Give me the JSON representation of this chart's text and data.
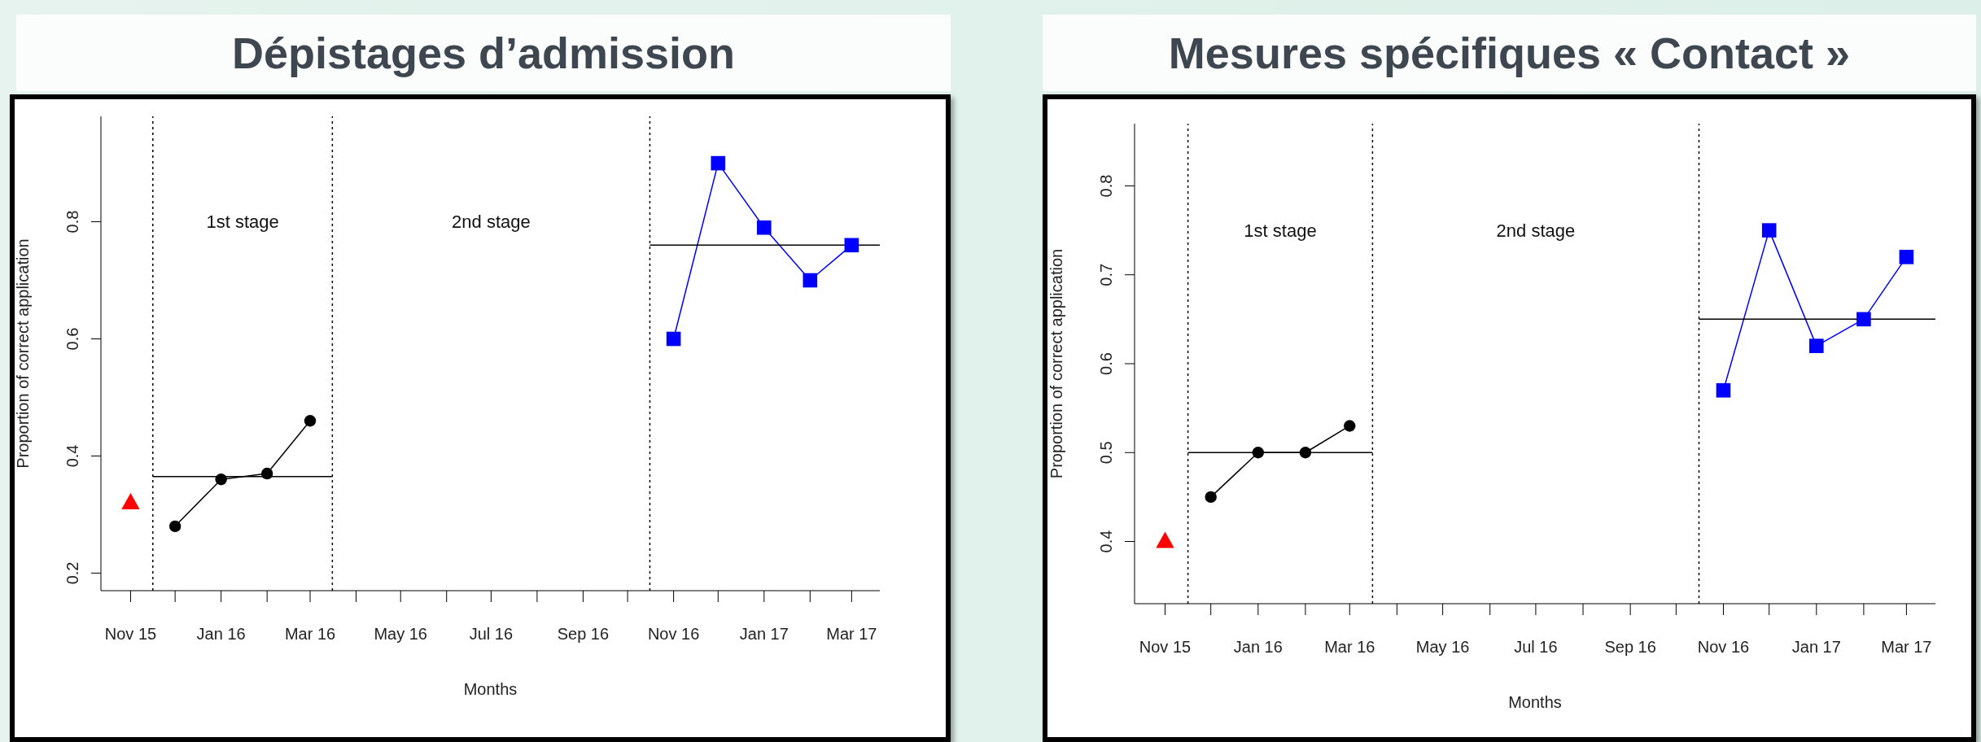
{
  "chart_data": [
    {
      "type": "line",
      "title": "Dépistages d’admission",
      "xlabel": "Months",
      "ylabel": "Proportion of correct application",
      "xlim": [
        "2015-10-12",
        "2017-03-20"
      ],
      "xticks": [
        {
          "value": "2015-11",
          "label": "Nov 15"
        },
        {
          "value": "2015-12",
          "label": null
        },
        {
          "value": "2016-01",
          "label": "Jan 16"
        },
        {
          "value": "2016-02",
          "label": null
        },
        {
          "value": "2016-03",
          "label": "Mar 16"
        },
        {
          "value": "2016-04",
          "label": null
        },
        {
          "value": "2016-05",
          "label": "May 16"
        },
        {
          "value": "2016-06",
          "label": null
        },
        {
          "value": "2016-07",
          "label": "Jul 16"
        },
        {
          "value": "2016-08",
          "label": null
        },
        {
          "value": "2016-09",
          "label": "Sep 16"
        },
        {
          "value": "2016-10",
          "label": null
        },
        {
          "value": "2016-11",
          "label": "Nov 16"
        },
        {
          "value": "2016-12",
          "label": null
        },
        {
          "value": "2017-01",
          "label": "Jan 17"
        },
        {
          "value": "2017-02",
          "label": null
        },
        {
          "value": "2017-03",
          "label": "Mar 17"
        }
      ],
      "ylim": [
        0.17,
        0.98
      ],
      "yticks": [
        0.2,
        0.4,
        0.6,
        0.8
      ],
      "grid": false,
      "legend": false,
      "series": [
        {
          "type": "scatter",
          "marker": "triangle",
          "color": "#ff0000",
          "x": [
            "2015-11"
          ],
          "values": [
            0.32
          ]
        },
        {
          "marker": "circle",
          "color": "#000000",
          "x": [
            "2015-12",
            "2016-01",
            "2016-02",
            "2016-03"
          ],
          "values": [
            0.28,
            0.36,
            0.37,
            0.46
          ]
        },
        {
          "marker": "none",
          "color": "#000000",
          "x": [
            "2015-11-16",
            "2016-03-16"
          ],
          "values": [
            0.365,
            0.365
          ]
        },
        {
          "marker": "square",
          "color": "#0000ff",
          "x": [
            "2016-11",
            "2016-12",
            "2017-01",
            "2017-02",
            "2017-03"
          ],
          "values": [
            0.6,
            0.9,
            0.79,
            0.7,
            0.76
          ]
        },
        {
          "marker": "none",
          "color": "#000000",
          "x": [
            "2016-10-16",
            "2017-03-20"
          ],
          "values": [
            0.76,
            0.76
          ]
        }
      ],
      "ref_lines": [
        {
          "axis": "x",
          "value": "2015-11-16",
          "color": "#000000",
          "line_style": "dotted"
        },
        {
          "axis": "x",
          "value": "2016-03-16",
          "color": "#000000",
          "line_style": "dotted"
        },
        {
          "axis": "x",
          "value": "2016-10-16",
          "color": "#000000",
          "line_style": "dotted"
        }
      ],
      "annotations": [
        "1st stage",
        "2nd stage"
      ]
    },
    {
      "type": "line",
      "title": "Mesures spécifiques « Contact »",
      "xlabel": "Months",
      "ylabel": "Proportion of correct application",
      "xlim": [
        "2015-10-12",
        "2017-03-20"
      ],
      "xticks": [
        {
          "value": "2015-11",
          "label": "Nov 15"
        },
        {
          "value": "2015-12",
          "label": null
        },
        {
          "value": "2016-01",
          "label": "Jan 16"
        },
        {
          "value": "2016-02",
          "label": null
        },
        {
          "value": "2016-03",
          "label": "Mar 16"
        },
        {
          "value": "2016-04",
          "label": null
        },
        {
          "value": "2016-05",
          "label": "May 16"
        },
        {
          "value": "2016-06",
          "label": null
        },
        {
          "value": "2016-07",
          "label": "Jul 16"
        },
        {
          "value": "2016-08",
          "label": null
        },
        {
          "value": "2016-09",
          "label": "Sep 16"
        },
        {
          "value": "2016-10",
          "label": null
        },
        {
          "value": "2016-11",
          "label": "Nov 16"
        },
        {
          "value": "2016-12",
          "label": null
        },
        {
          "value": "2017-01",
          "label": "Jan 17"
        },
        {
          "value": "2017-02",
          "label": null
        },
        {
          "value": "2017-03",
          "label": "Mar 17"
        }
      ],
      "ylim": [
        0.33,
        0.87
      ],
      "yticks": [
        0.4,
        0.5,
        0.6,
        0.7,
        0.8
      ],
      "grid": false,
      "legend": false,
      "series": [
        {
          "type": "scatter",
          "marker": "triangle",
          "color": "#ff0000",
          "x": [
            "2015-11"
          ],
          "values": [
            0.4
          ]
        },
        {
          "marker": "circle",
          "color": "#000000",
          "x": [
            "2015-12",
            "2016-01",
            "2016-02",
            "2016-03"
          ],
          "values": [
            0.45,
            0.5,
            0.5,
            0.53
          ]
        },
        {
          "marker": "none",
          "color": "#000000",
          "x": [
            "2015-11-16",
            "2016-03-16"
          ],
          "values": [
            0.5,
            0.5
          ]
        },
        {
          "marker": "square",
          "color": "#0000ff",
          "x": [
            "2016-11",
            "2016-12",
            "2017-01",
            "2017-02",
            "2017-03"
          ],
          "values": [
            0.57,
            0.75,
            0.62,
            0.65,
            0.72
          ]
        },
        {
          "marker": "none",
          "color": "#000000",
          "x": [
            "2016-10-16",
            "2017-03-20"
          ],
          "values": [
            0.65,
            0.65
          ]
        }
      ],
      "ref_lines": [
        {
          "axis": "x",
          "value": "2015-11-16",
          "color": "#000000",
          "line_style": "dotted"
        },
        {
          "axis": "x",
          "value": "2016-03-16",
          "color": "#000000",
          "line_style": "dotted"
        },
        {
          "axis": "x",
          "value": "2016-10-16",
          "color": "#000000",
          "line_style": "dotted"
        }
      ],
      "annotations": [
        "1st stage",
        "2nd stage"
      ]
    }
  ]
}
